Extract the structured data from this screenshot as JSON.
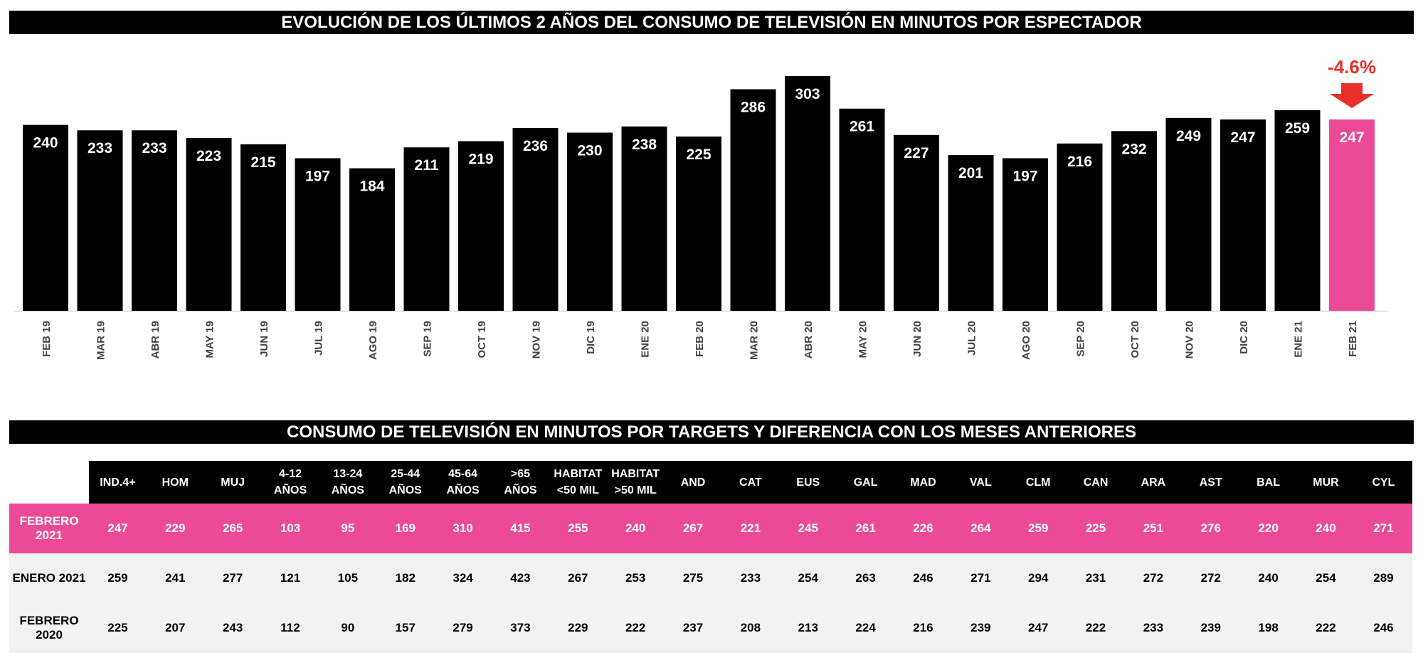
{
  "chart_title": "EVOLUCIÓN DE LOS ÚLTIMOS 2 AÑOS DEL CONSUMO DE TELEVISIÓN EN MINUTOS POR ESPECTADOR",
  "chart_data": {
    "type": "bar",
    "categories": [
      "FEB 19",
      "MAR 19",
      "ABR 19",
      "MAY 19",
      "JUN 19",
      "JUL 19",
      "AGO 19",
      "SEP 19",
      "OCT 19",
      "NOV 19",
      "DIC 19",
      "ENE 20",
      "FEB 20",
      "MAR 20",
      "ABR 20",
      "MAY 20",
      "JUN 20",
      "JUL 20",
      "AGO 20",
      "SEP 20",
      "OCT 20",
      "NOV 20",
      "DIC 20",
      "ENE 21",
      "FEB 21"
    ],
    "values": [
      240,
      233,
      233,
      223,
      215,
      197,
      184,
      211,
      219,
      236,
      230,
      238,
      225,
      286,
      303,
      261,
      227,
      201,
      197,
      216,
      232,
      249,
      247,
      259,
      247
    ],
    "ylim": [
      0,
      303
    ],
    "grid": false,
    "colors": {
      "default": "#000000",
      "highlight": "#ec4a96",
      "annotation": "#e8302a"
    },
    "highlight_index": 24,
    "annotation": {
      "text": "-4.6%",
      "target": "FEB 21",
      "icon": "arrow-down-icon"
    }
  },
  "table": {
    "title": "CONSUMO DE TELEVISIÓN EN MINUTOS POR TARGETS Y DIFERENCIA CON LOS MESES ANTERIORES",
    "headers": [
      [
        "IND.4+"
      ],
      [
        "HOM"
      ],
      [
        "MUJ"
      ],
      [
        "4-12",
        "AÑOS"
      ],
      [
        "13-24",
        "AÑOS"
      ],
      [
        "25-44",
        "AÑOS"
      ],
      [
        "45-64",
        "AÑOS"
      ],
      [
        ">65",
        "AÑOS"
      ],
      [
        "HABITAT",
        "<50 MIL"
      ],
      [
        "HABITAT",
        ">50 MIL"
      ],
      [
        "AND"
      ],
      [
        "CAT"
      ],
      [
        "EUS"
      ],
      [
        "GAL"
      ],
      [
        "MAD"
      ],
      [
        "VAL"
      ],
      [
        "CLM"
      ],
      [
        "CAN"
      ],
      [
        "ARA"
      ],
      [
        "AST"
      ],
      [
        "BAL"
      ],
      [
        "MUR"
      ],
      [
        "CYL"
      ]
    ],
    "rows": [
      {
        "label": [
          "FEBRERO",
          "2021"
        ],
        "highlight": true,
        "values": [
          247,
          229,
          265,
          103,
          95,
          169,
          310,
          415,
          255,
          240,
          267,
          221,
          245,
          261,
          226,
          264,
          259,
          225,
          251,
          276,
          220,
          240,
          271
        ]
      },
      {
        "label": [
          "ENERO 2021"
        ],
        "highlight": false,
        "values": [
          259,
          241,
          277,
          121,
          105,
          182,
          324,
          423,
          267,
          253,
          275,
          233,
          254,
          263,
          246,
          271,
          294,
          231,
          272,
          272,
          240,
          254,
          289
        ]
      },
      {
        "label": [
          "FEBRERO",
          "2020"
        ],
        "highlight": false,
        "values": [
          225,
          207,
          243,
          112,
          90,
          157,
          279,
          373,
          229,
          222,
          237,
          208,
          213,
          224,
          216,
          239,
          247,
          222,
          233,
          239,
          198,
          222,
          246
        ]
      }
    ]
  }
}
